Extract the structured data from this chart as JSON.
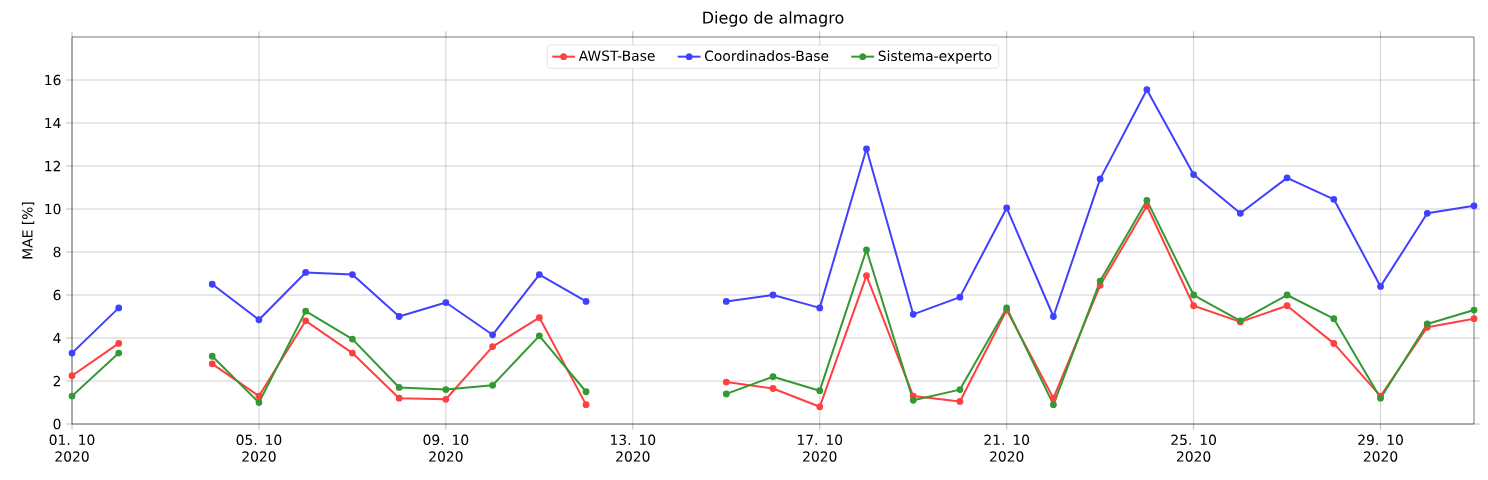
{
  "chart_data": {
    "type": "line",
    "title": "Diego de almagro",
    "ylabel": "MAE [%]",
    "x": [
      "2020-10-01",
      "2020-10-02",
      "2020-10-03",
      "2020-10-04",
      "2020-10-05",
      "2020-10-06",
      "2020-10-07",
      "2020-10-08",
      "2020-10-09",
      "2020-10-10",
      "2020-10-11",
      "2020-10-12",
      "2020-10-13",
      "2020-10-14",
      "2020-10-15",
      "2020-10-16",
      "2020-10-17",
      "2020-10-18",
      "2020-10-19",
      "2020-10-20",
      "2020-10-21",
      "2020-10-22",
      "2020-10-23",
      "2020-10-24",
      "2020-10-25",
      "2020-10-26",
      "2020-10-27",
      "2020-10-28",
      "2020-10-29",
      "2020-10-30",
      "2020-10-31"
    ],
    "series": [
      {
        "name": "AWST-Base",
        "color": "#ff4040",
        "values": [
          2.25,
          3.75,
          null,
          2.8,
          1.3,
          4.8,
          3.3,
          1.2,
          1.15,
          3.6,
          4.95,
          0.9,
          null,
          null,
          1.95,
          1.65,
          0.8,
          6.9,
          1.3,
          1.05,
          5.3,
          1.2,
          6.45,
          10.15,
          5.5,
          4.75,
          5.5,
          3.75,
          1.3,
          4.5,
          4.9
        ]
      },
      {
        "name": "Coordinados-Base",
        "color": "#4040ff",
        "values": [
          3.3,
          5.4,
          null,
          6.5,
          4.85,
          7.05,
          6.95,
          5.0,
          5.65,
          4.15,
          6.95,
          5.7,
          null,
          null,
          5.7,
          6.0,
          5.4,
          12.8,
          5.1,
          5.9,
          10.05,
          5.0,
          11.4,
          15.55,
          11.6,
          9.8,
          11.45,
          10.45,
          6.4,
          9.8,
          10.15
        ]
      },
      {
        "name": "Sistema-experto",
        "color": "#339933",
        "values": [
          1.3,
          3.3,
          null,
          3.15,
          1.0,
          5.25,
          3.95,
          1.7,
          1.6,
          1.8,
          4.1,
          1.5,
          null,
          null,
          1.4,
          2.2,
          1.55,
          8.1,
          1.1,
          1.6,
          5.4,
          0.9,
          6.65,
          10.4,
          6.0,
          4.8,
          6.0,
          4.9,
          1.2,
          4.65,
          5.3
        ]
      }
    ],
    "xlim": [
      "2020-10-01",
      "2020-10-31"
    ],
    "xticks": [
      {
        "value": "2020-10-01",
        "label": "01. 10 2020"
      },
      {
        "value": "2020-10-05",
        "label": "05. 10 2020"
      },
      {
        "value": "2020-10-09",
        "label": "09. 10 2020"
      },
      {
        "value": "2020-10-13",
        "label": "13. 10 2020"
      },
      {
        "value": "2020-10-17",
        "label": "17. 10 2020"
      },
      {
        "value": "2020-10-21",
        "label": "21. 10 2020"
      },
      {
        "value": "2020-10-25",
        "label": "25. 10 2020"
      },
      {
        "value": "2020-10-29",
        "label": "29. 10 2020"
      }
    ],
    "ylim": [
      0,
      18
    ],
    "yticks": [
      0,
      2,
      4,
      6,
      8,
      10,
      12,
      14,
      16
    ],
    "grid": true,
    "legend": "top",
    "marker": "circle",
    "line_style": "solid"
  }
}
